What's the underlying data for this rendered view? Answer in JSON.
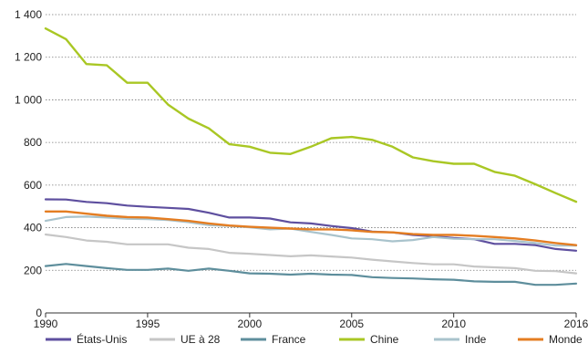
{
  "chart_data": {
    "type": "line",
    "title": "",
    "xlabel": "",
    "ylabel": "",
    "xlim": [
      1990,
      2016
    ],
    "ylim": [
      0,
      1400
    ],
    "grid": "horizontal dotted",
    "legend_position": "bottom",
    "x_ticks": [
      1990,
      1995,
      2000,
      2005,
      2010,
      2016
    ],
    "x_tick_labels": [
      "1990",
      "1995",
      "2000",
      "2005",
      "2010",
      "2016"
    ],
    "y_ticks": [
      0,
      200,
      400,
      600,
      800,
      1000,
      1200,
      1400
    ],
    "y_tick_labels": [
      "0",
      "200",
      "400",
      "600",
      "800",
      "1 000",
      "1 200",
      "1 400"
    ],
    "x": [
      1990,
      1991,
      1992,
      1993,
      1994,
      1995,
      1996,
      1997,
      1998,
      1999,
      2000,
      2001,
      2002,
      2003,
      2004,
      2005,
      2006,
      2007,
      2008,
      2009,
      2010,
      2011,
      2012,
      2013,
      2014,
      2015,
      2016
    ],
    "series": [
      {
        "name": "États-Unis",
        "color": "#5e4f9f",
        "values": [
          533,
          532,
          521,
          515,
          504,
          498,
          493,
          488,
          470,
          448,
          448,
          443,
          425,
          420,
          408,
          398,
          382,
          378,
          366,
          360,
          352,
          346,
          324,
          324,
          318,
          300,
          292
        ]
      },
      {
        "name": "UE à 28",
        "color": "#c6c6c6",
        "values": [
          368,
          356,
          340,
          334,
          322,
          322,
          322,
          306,
          300,
          282,
          278,
          272,
          266,
          270,
          265,
          260,
          250,
          242,
          234,
          228,
          228,
          218,
          214,
          210,
          198,
          196,
          186
        ]
      },
      {
        "name": "France",
        "color": "#5e8e9c",
        "values": [
          220,
          230,
          220,
          210,
          202,
          202,
          208,
          198,
          208,
          198,
          186,
          184,
          180,
          184,
          180,
          178,
          168,
          164,
          162,
          158,
          156,
          148,
          146,
          146,
          132,
          132,
          138
        ]
      },
      {
        "name": "Chine",
        "color": "#a9c724",
        "values": [
          1335,
          1285,
          1168,
          1162,
          1080,
          1080,
          978,
          912,
          866,
          792,
          780,
          752,
          746,
          780,
          820,
          826,
          812,
          780,
          730,
          712,
          700,
          700,
          662,
          644,
          604,
          562,
          522
        ]
      },
      {
        "name": "Inde",
        "color": "#a9c3cc",
        "values": [
          432,
          450,
          452,
          448,
          442,
          440,
          436,
          426,
          412,
          408,
          402,
          392,
          396,
          380,
          366,
          350,
          346,
          336,
          342,
          356,
          348,
          346,
          346,
          338,
          328,
          316,
          316
        ]
      },
      {
        "name": "Monde",
        "color": "#e47d22",
        "values": [
          476,
          476,
          466,
          456,
          450,
          448,
          440,
          432,
          420,
          410,
          404,
          400,
          396,
          392,
          392,
          388,
          380,
          378,
          370,
          366,
          366,
          362,
          356,
          350,
          340,
          328,
          318
        ]
      }
    ]
  }
}
